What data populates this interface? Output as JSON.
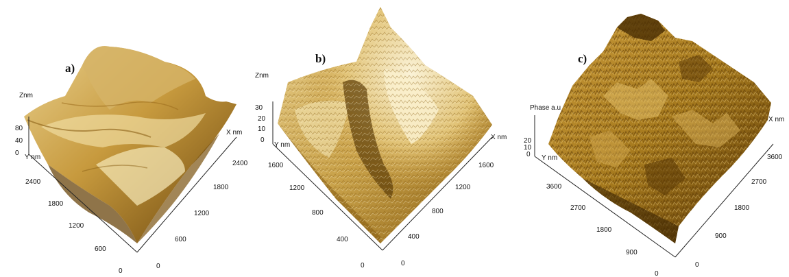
{
  "panels": [
    {
      "id": "a",
      "label": "a)",
      "z_axis_label": "Znm",
      "z_ticks": [
        "80",
        "40",
        "0"
      ],
      "y_axis_label": "Y nm",
      "y_ticks": [
        "2400",
        "1800",
        "1200",
        "600",
        "0"
      ],
      "x_axis_label": "X nm",
      "x_ticks": [
        "0",
        "600",
        "1200",
        "1800",
        "2400"
      ],
      "colors": {
        "light": "#e8cf8c",
        "mid": "#b98a2e",
        "dark": "#5e3c08"
      }
    },
    {
      "id": "b",
      "label": "b)",
      "z_axis_label": "Znm",
      "z_ticks": [
        "30",
        "20",
        "10",
        "0"
      ],
      "y_axis_label": "Y nm",
      "y_ticks": [
        "1600",
        "1200",
        "800",
        "400",
        "0"
      ],
      "x_axis_label": "X nm",
      "x_ticks": [
        "0",
        "400",
        "800",
        "1200",
        "1600"
      ],
      "colors": {
        "light": "#f4e8c2",
        "mid": "#c9a24a",
        "dark": "#6a4608"
      }
    },
    {
      "id": "c",
      "label": "c)",
      "z_axis_label": "Phase a.u",
      "z_ticks": [
        "20",
        "10",
        "0"
      ],
      "y_axis_label": "Y nm",
      "y_ticks": [
        "3600",
        "2700",
        "1800",
        "900",
        "0"
      ],
      "x_axis_label": "X nm",
      "x_ticks": [
        "0",
        "900",
        "1800",
        "2700",
        "3600"
      ],
      "colors": {
        "light": "#d9b45a",
        "mid": "#a67a1e",
        "dark": "#4a2e04"
      }
    }
  ]
}
